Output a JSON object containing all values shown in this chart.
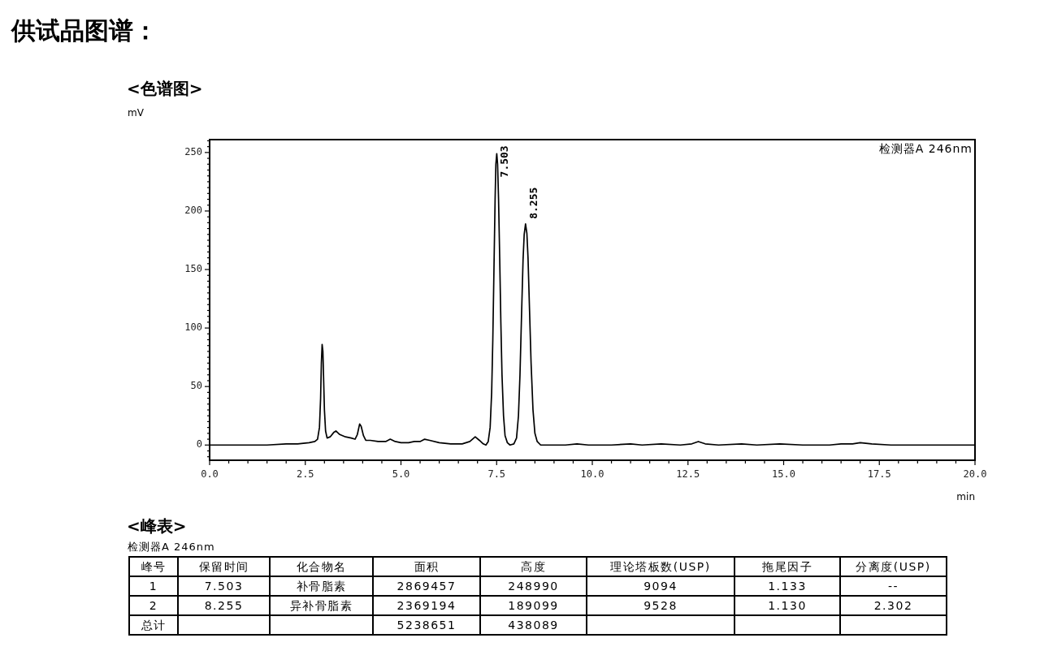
{
  "chart_data": {
    "type": "line",
    "title": "供试品图谱：",
    "subtitle": "<色谱图>",
    "xlabel": "min",
    "ylabel": "mV",
    "color": "#000000",
    "marker": "none",
    "line_style": "solid",
    "x": [
      0,
      1.5,
      2.0,
      2.3,
      2.6,
      2.75,
      2.82,
      2.87,
      2.9,
      2.92,
      2.94,
      2.96,
      2.98,
      3.0,
      3.03,
      3.07,
      3.15,
      3.25,
      3.3,
      3.4,
      3.55,
      3.7,
      3.8,
      3.86,
      3.92,
      3.96,
      4.02,
      4.08,
      4.2,
      4.4,
      4.6,
      4.72,
      4.85,
      5.0,
      5.2,
      5.35,
      5.5,
      5.62,
      5.75,
      6.0,
      6.3,
      6.6,
      6.8,
      6.94,
      7.05,
      7.15,
      7.22,
      7.28,
      7.33,
      7.37,
      7.4,
      7.43,
      7.46,
      7.48,
      7.503,
      7.525,
      7.55,
      7.58,
      7.61,
      7.64,
      7.68,
      7.72,
      7.78,
      7.85,
      7.95,
      8.02,
      8.07,
      8.11,
      8.15,
      8.19,
      8.22,
      8.255,
      8.29,
      8.32,
      8.36,
      8.4,
      8.45,
      8.5,
      8.56,
      8.65,
      9.3,
      9.6,
      9.9,
      10.5,
      11.0,
      11.3,
      11.8,
      12.3,
      12.6,
      12.77,
      12.95,
      13.3,
      13.9,
      14.3,
      14.9,
      15.5,
      16.2,
      16.5,
      16.8,
      17.0,
      17.3,
      17.8,
      18.5,
      20.0
    ],
    "values": [
      0,
      0,
      1,
      1,
      2,
      3,
      5,
      15,
      40,
      70,
      86,
      80,
      55,
      30,
      12,
      6,
      7,
      11,
      12,
      9,
      7,
      6,
      5,
      9,
      18,
      16,
      8,
      4,
      4,
      3,
      3,
      5,
      3,
      2,
      2,
      3,
      3,
      5,
      4,
      2,
      1,
      1,
      3,
      7,
      4,
      1,
      0,
      3,
      15,
      45,
      90,
      150,
      210,
      240,
      249,
      240,
      210,
      160,
      105,
      60,
      25,
      8,
      2,
      0,
      1,
      6,
      25,
      60,
      110,
      158,
      180,
      189,
      181,
      160,
      115,
      70,
      30,
      10,
      3,
      0,
      0,
      1,
      0,
      0,
      1,
      0,
      1,
      0,
      1,
      3,
      1,
      0,
      1,
      0,
      1,
      0,
      0,
      1,
      1,
      2,
      1,
      0,
      0,
      0
    ],
    "xlim": [
      0,
      20
    ],
    "ylim": [
      -13,
      261
    ],
    "xticks": [
      {
        "value": 0,
        "label": "0.0"
      },
      {
        "value": 0.5,
        "label": null
      },
      {
        "value": 1,
        "label": null
      },
      {
        "value": 1.5,
        "label": null
      },
      {
        "value": 2,
        "label": null
      },
      2.5,
      {
        "value": 3,
        "label": null
      },
      {
        "value": 3.5,
        "label": null
      },
      {
        "value": 4,
        "label": null
      },
      {
        "value": 4.5,
        "label": null
      },
      {
        "value": 5,
        "label": "5.0"
      },
      {
        "value": 5.5,
        "label": null
      },
      {
        "value": 6,
        "label": null
      },
      {
        "value": 6.5,
        "label": null
      },
      {
        "value": 7,
        "label": null
      },
      7.5,
      {
        "value": 8,
        "label": null
      },
      {
        "value": 8.5,
        "label": null
      },
      {
        "value": 9,
        "label": null
      },
      {
        "value": 9.5,
        "label": null
      },
      {
        "value": 10,
        "label": "10.0"
      },
      {
        "value": 10.5,
        "label": null
      },
      {
        "value": 11,
        "label": null
      },
      {
        "value": 11.5,
        "label": null
      },
      {
        "value": 12,
        "label": null
      },
      12.5,
      {
        "value": 13,
        "label": null
      },
      {
        "value": 13.5,
        "label": null
      },
      {
        "value": 14,
        "label": null
      },
      {
        "value": 14.5,
        "label": null
      },
      {
        "value": 15,
        "label": "15.0"
      },
      {
        "value": 15.5,
        "label": null
      },
      {
        "value": 16,
        "label": null
      },
      {
        "value": 16.5,
        "label": null
      },
      {
        "value": 17,
        "label": null
      },
      17.5,
      {
        "value": 18,
        "label": null
      },
      {
        "value": 18.5,
        "label": null
      },
      {
        "value": 19,
        "label": null
      },
      {
        "value": 19.5,
        "label": null
      },
      {
        "value": 20,
        "label": "20.0"
      }
    ],
    "yticks": [
      {
        "value": -10,
        "label": null
      },
      {
        "value": -5,
        "label": null
      },
      0,
      {
        "value": 5,
        "label": null
      },
      {
        "value": 10,
        "label": null
      },
      {
        "value": 15,
        "label": null
      },
      {
        "value": 20,
        "label": null
      },
      {
        "value": 25,
        "label": null
      },
      {
        "value": 30,
        "label": null
      },
      {
        "value": 35,
        "label": null
      },
      {
        "value": 40,
        "label": null
      },
      {
        "value": 45,
        "label": null
      },
      50,
      {
        "value": 55,
        "label": null
      },
      {
        "value": 60,
        "label": null
      },
      {
        "value": 65,
        "label": null
      },
      {
        "value": 70,
        "label": null
      },
      {
        "value": 75,
        "label": null
      },
      {
        "value": 80,
        "label": null
      },
      {
        "value": 85,
        "label": null
      },
      {
        "value": 90,
        "label": null
      },
      {
        "value": 95,
        "label": null
      },
      100,
      {
        "value": 105,
        "label": null
      },
      {
        "value": 110,
        "label": null
      },
      {
        "value": 115,
        "label": null
      },
      {
        "value": 120,
        "label": null
      },
      {
        "value": 125,
        "label": null
      },
      {
        "value": 130,
        "label": null
      },
      {
        "value": 135,
        "label": null
      },
      {
        "value": 140,
        "label": null
      },
      {
        "value": 145,
        "label": null
      },
      150,
      {
        "value": 155,
        "label": null
      },
      {
        "value": 160,
        "label": null
      },
      {
        "value": 165,
        "label": null
      },
      {
        "value": 170,
        "label": null
      },
      {
        "value": 175,
        "label": null
      },
      {
        "value": 180,
        "label": null
      },
      {
        "value": 185,
        "label": null
      },
      {
        "value": 190,
        "label": null
      },
      {
        "value": 195,
        "label": null
      },
      200,
      {
        "value": 205,
        "label": null
      },
      {
        "value": 210,
        "label": null
      },
      {
        "value": 215,
        "label": null
      },
      {
        "value": 220,
        "label": null
      },
      {
        "value": 225,
        "label": null
      },
      {
        "value": 230,
        "label": null
      },
      {
        "value": 235,
        "label": null
      },
      {
        "value": 240,
        "label": null
      },
      {
        "value": 245,
        "label": null
      },
      250,
      {
        "value": 255,
        "label": null
      },
      {
        "value": 260,
        "label": null
      }
    ],
    "annotations": [
      "检测器A 246nm",
      {
        "text": "7.503",
        "x": 7.503,
        "y": 249
      },
      {
        "text": "8.255",
        "x": 8.255,
        "y": 189
      },
      "<峰表>",
      "检测器A 246nm",
      "峰号",
      "保留时间",
      "化合物名",
      "面积",
      "高度",
      "理论塔板数(USP)",
      "拖尾因子",
      "分离度(USP)",
      "1",
      "7.503",
      "补骨脂素",
      "2869457",
      "248990",
      "9094",
      "1.133",
      "--",
      "2",
      "8.255",
      "异补骨脂素",
      "2369194",
      "189099",
      "9528",
      "1.130",
      "2.302",
      "总计",
      "5238651",
      "438089"
    ]
  }
}
